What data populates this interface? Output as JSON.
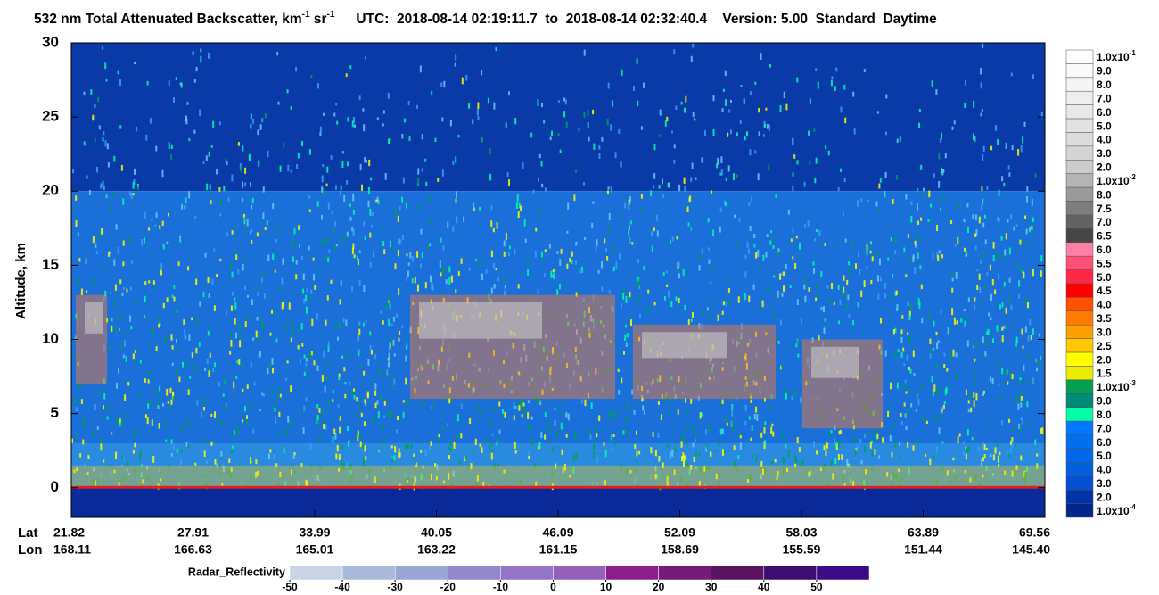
{
  "chart_data": {
    "type": "heatmap",
    "title": {
      "text1": "532 nm Total Attenuated Backscatter, km",
      "sup1": "-1",
      "text2": " sr",
      "sup2": "-1",
      "text3": "UTC:  2018-08-14 02:19:11.7  to  2018-08-14 02:32:40.4    Version: 5.00  Standard  Daytime"
    },
    "ylabel": "Altitude, km",
    "ylim": [
      -2,
      30
    ],
    "yticks": [
      0,
      5,
      10,
      15,
      20,
      25,
      30
    ],
    "lat_label": "Lat",
    "lon_label": "Lon",
    "lat": [
      "21.82",
      "27.91",
      "33.99",
      "40.05",
      "46.09",
      "52.09",
      "58.03",
      "63.89",
      "69.56"
    ],
    "lon": [
      "168.11",
      "166.63",
      "165.01",
      "163.22",
      "161.15",
      "158.69",
      "155.59",
      "151.44",
      "145.40"
    ],
    "colorbar": [
      {
        "label": "1.0x10",
        "exp": "-1",
        "color": "#ffffff"
      },
      {
        "label": "9.0",
        "color": "#fafafa"
      },
      {
        "label": "8.0",
        "color": "#f4f4f4"
      },
      {
        "label": "7.0",
        "color": "#eeeeee"
      },
      {
        "label": "6.0",
        "color": "#e8e8e8"
      },
      {
        "label": "5.0",
        "color": "#e2e2e2"
      },
      {
        "label": "4.0",
        "color": "#dcdcdc"
      },
      {
        "label": "3.0",
        "color": "#d4d4d4"
      },
      {
        "label": "2.0",
        "color": "#cccccc"
      },
      {
        "label": "1.0x10",
        "exp": "-2",
        "color": "#b4b4b4"
      },
      {
        "label": "8.0",
        "color": "#9a9a9a"
      },
      {
        "label": "7.5",
        "color": "#7e7e7e"
      },
      {
        "label": "7.0",
        "color": "#626262"
      },
      {
        "label": "6.5",
        "color": "#464646"
      },
      {
        "label": "6.0",
        "color": "#ff80a4"
      },
      {
        "label": "5.5",
        "color": "#ff5078"
      },
      {
        "label": "5.0",
        "color": "#ff2846"
      },
      {
        "label": "4.5",
        "color": "#ff0000"
      },
      {
        "label": "4.0",
        "color": "#ff5000"
      },
      {
        "label": "3.5",
        "color": "#ff7c00"
      },
      {
        "label": "3.0",
        "color": "#ffa000"
      },
      {
        "label": "2.5",
        "color": "#ffc800"
      },
      {
        "label": "2.0",
        "color": "#ffff00"
      },
      {
        "label": "1.5",
        "color": "#ecec00"
      },
      {
        "label": "1.0x10",
        "exp": "-3",
        "color": "#00a050"
      },
      {
        "label": "9.0",
        "color": "#008a78"
      },
      {
        "label": "8.0",
        "color": "#00ffa8"
      },
      {
        "label": "7.0",
        "color": "#0078ff"
      },
      {
        "label": "6.0",
        "color": "#0070f0"
      },
      {
        "label": "5.0",
        "color": "#0068e8"
      },
      {
        "label": "4.0",
        "color": "#0060e0"
      },
      {
        "label": "3.0",
        "color": "#0050d0"
      },
      {
        "label": "2.0",
        "color": "#0032a8"
      },
      {
        "label": "1.0x10",
        "exp": "-4",
        "color": "#00268c"
      }
    ],
    "radar_label": "Radar_Reflectivity",
    "radar_ticks": [
      -50,
      -40,
      -30,
      -20,
      -10,
      0,
      10,
      20,
      30,
      40,
      50
    ],
    "radar_colors": [
      "#c8d4e6",
      "#a8bad8",
      "#9aa6d4",
      "#9288cc",
      "#9474c4",
      "#9460b8",
      "#8c1e8c",
      "#741c78",
      "#5a1460",
      "#3c0e70",
      "#3a0a88"
    ]
  }
}
